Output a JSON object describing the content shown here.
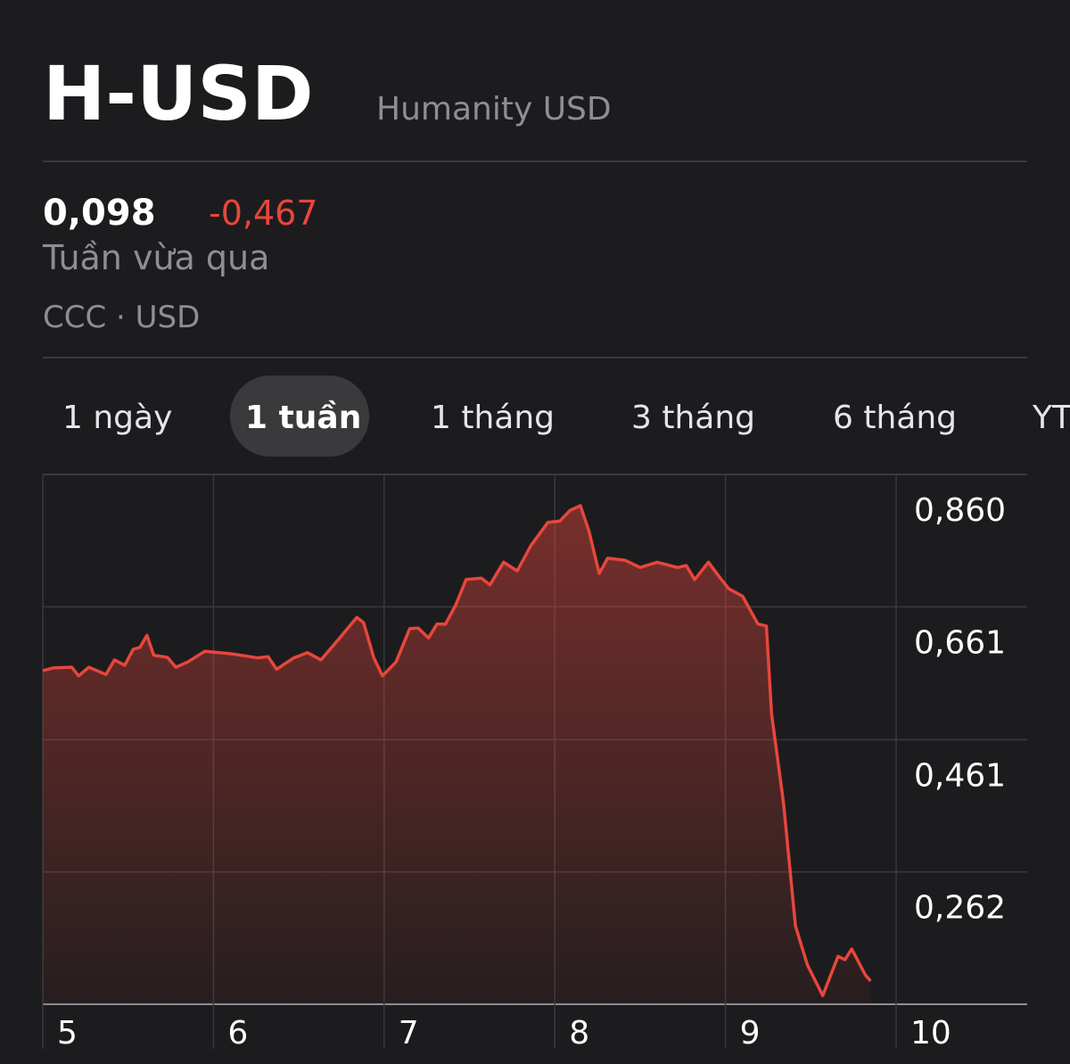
{
  "header": {
    "symbol": "H-USD",
    "name": "Humanity USD"
  },
  "quote": {
    "price": "0,098",
    "change": "-0,467",
    "period": "Tuần vừa qua",
    "exchange": "CCC · USD"
  },
  "tabs": [
    "1 ngày",
    "1 tuần",
    "1 tháng",
    "3 tháng",
    "6 tháng",
    "YTD"
  ],
  "chart_data": {
    "type": "line",
    "color": "#e8463c",
    "x": [
      5.0,
      5.06,
      5.17,
      5.21,
      5.27,
      5.37,
      5.42,
      5.48,
      5.53,
      5.57,
      5.61,
      5.65,
      5.73,
      5.78,
      5.85,
      5.95,
      6.11,
      6.26,
      6.32,
      6.37,
      6.47,
      6.55,
      6.63,
      6.74,
      6.84,
      6.88,
      6.94,
      6.99,
      7.07,
      7.15,
      7.2,
      7.26,
      7.31,
      7.36,
      7.42,
      7.48,
      7.57,
      7.62,
      7.7,
      7.78,
      7.86,
      7.96,
      8.03,
      8.09,
      8.15,
      8.2,
      8.26,
      8.31,
      8.41,
      8.5,
      8.6,
      8.72,
      8.77,
      8.82,
      8.9,
      8.97,
      9.02,
      9.1,
      9.19,
      9.24,
      9.27,
      9.34,
      9.41,
      9.48,
      9.57,
      9.66,
      9.7,
      9.74,
      9.82,
      9.85
    ],
    "values": [
      0.565,
      0.569,
      0.57,
      0.557,
      0.57,
      0.559,
      0.581,
      0.573,
      0.597,
      0.6,
      0.618,
      0.588,
      0.585,
      0.57,
      0.578,
      0.594,
      0.59,
      0.584,
      0.586,
      0.567,
      0.584,
      0.592,
      0.581,
      0.614,
      0.645,
      0.637,
      0.584,
      0.557,
      0.578,
      0.628,
      0.629,
      0.614,
      0.635,
      0.635,
      0.664,
      0.702,
      0.704,
      0.694,
      0.728,
      0.715,
      0.753,
      0.788,
      0.79,
      0.806,
      0.813,
      0.775,
      0.711,
      0.734,
      0.731,
      0.72,
      0.728,
      0.72,
      0.723,
      0.702,
      0.728,
      0.704,
      0.688,
      0.677,
      0.635,
      0.632,
      0.5,
      0.366,
      0.181,
      0.122,
      0.076,
      0.135,
      0.13,
      0.146,
      0.107,
      0.098
    ],
    "xlim": [
      5,
      10
    ],
    "xticks": [
      5,
      6,
      7,
      8,
      9,
      10
    ],
    "ylim": [
      0.063,
      0.86
    ],
    "yticks": [
      {
        "value": 0.86,
        "label": "0,860"
      },
      {
        "value": 0.661,
        "label": "0,661"
      },
      {
        "value": 0.461,
        "label": "0,461"
      },
      {
        "value": 0.262,
        "label": "0,262"
      }
    ],
    "grid": true
  }
}
